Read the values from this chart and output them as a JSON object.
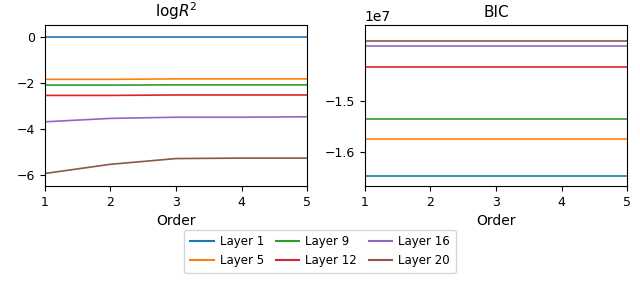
{
  "title_left": "logR$^2$",
  "title_right": "BIC",
  "xlabel": "Order",
  "x": [
    1,
    2,
    3,
    4,
    5
  ],
  "logR2": {
    "Layer 1": [
      -0.02,
      -0.02,
      -0.02,
      -0.02,
      -0.02
    ],
    "Layer 5": [
      -1.85,
      -1.85,
      -1.83,
      -1.83,
      -1.83
    ],
    "Layer 9": [
      -2.1,
      -2.1,
      -2.09,
      -2.09,
      -2.09
    ],
    "Layer 12": [
      -2.55,
      -2.55,
      -2.53,
      -2.53,
      -2.53
    ],
    "Layer 16": [
      -3.7,
      -3.55,
      -3.5,
      -3.5,
      -3.48
    ],
    "Layer 20": [
      -5.95,
      -5.55,
      -5.3,
      -5.28,
      -5.28
    ]
  },
  "BIC": {
    "Layer 1": [
      -16450000.0,
      -16450000.0,
      -16450000.0,
      -16450000.0,
      -16450000.0
    ],
    "Layer 5": [
      -15750000.0,
      -15750000.0,
      -15750000.0,
      -15750000.0,
      -15750000.0
    ],
    "Layer 9": [
      -15350000.0,
      -15350000.0,
      -15350000.0,
      -15350000.0,
      -15350000.0
    ],
    "Layer 12": [
      -14350000.0,
      -14350000.0,
      -14350000.0,
      -14350000.0,
      -14350000.0
    ],
    "Layer 16": [
      -13950000.0,
      -13950000.0,
      -13950000.0,
      -13950000.0,
      -13950000.0
    ],
    "Layer 20": [
      -13850000.0,
      -13850000.0,
      -13850000.0,
      -13850000.0,
      -13850000.0
    ]
  },
  "colors": {
    "Layer 1": "#1f77b4",
    "Layer 5": "#ff7f0e",
    "Layer 9": "#2ca02c",
    "Layer 12": "#d62728",
    "Layer 16": "#9467bd",
    "Layer 20": "#8c564b"
  },
  "ylim_left": [
    -6.5,
    0.5
  ],
  "ylim_right": [
    -16650000.0,
    -13550000.0
  ],
  "yticks_left": [
    0,
    -2,
    -4,
    -6
  ],
  "yticks_right": [
    -15000000.0,
    -16000000.0
  ],
  "figsize": [
    6.4,
    2.82
  ],
  "dpi": 100
}
